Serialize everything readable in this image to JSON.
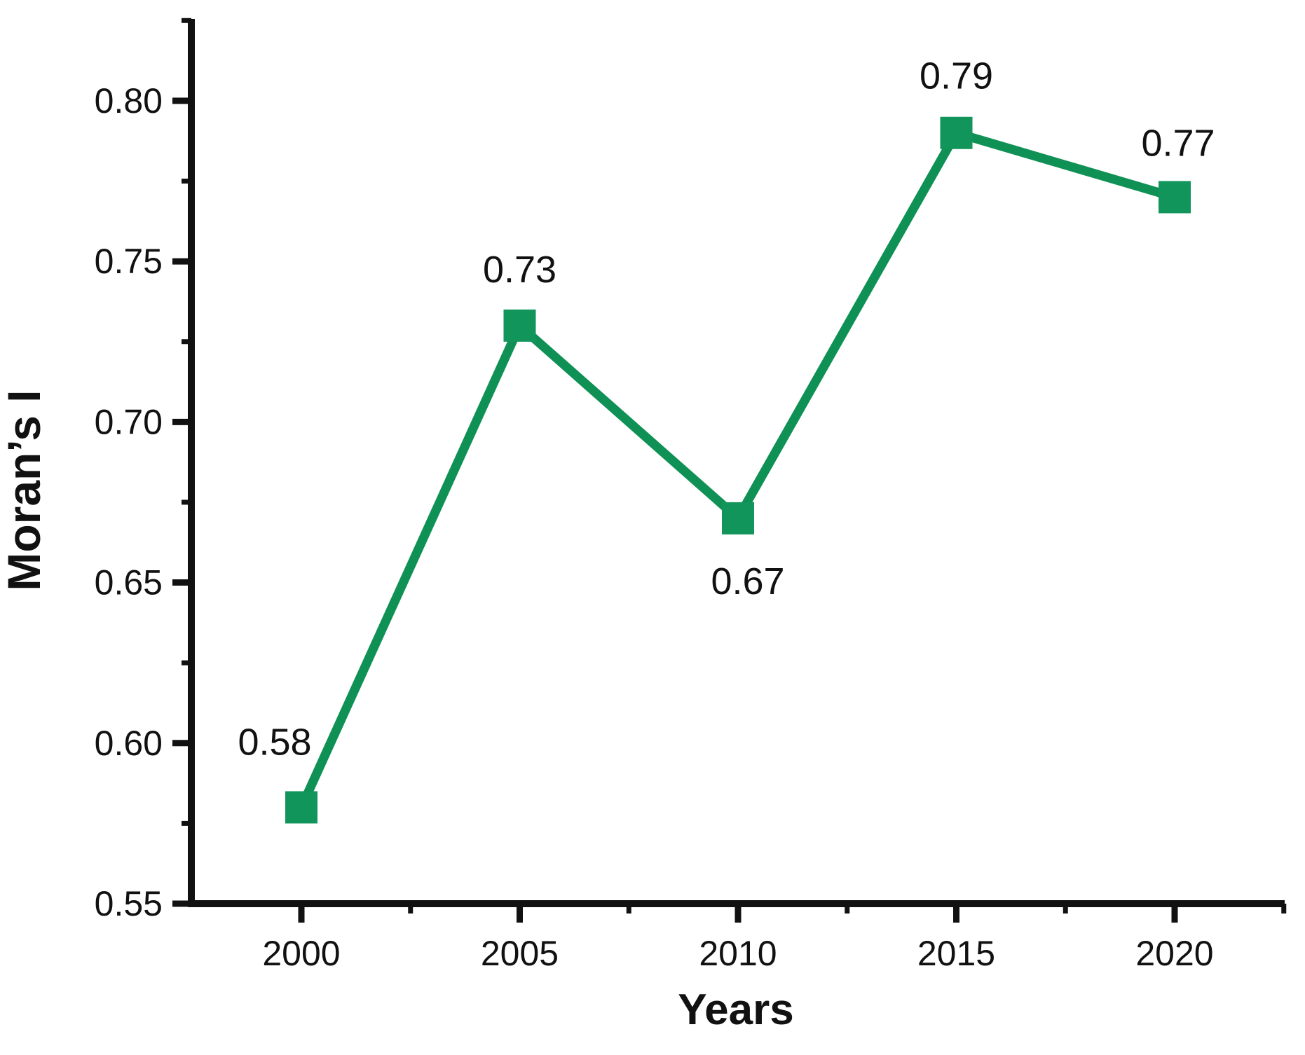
{
  "chart_data": {
    "type": "line",
    "title": "",
    "xlabel": "Years",
    "ylabel": "Moran’s I",
    "x": [
      2000,
      2005,
      2010,
      2015,
      2020
    ],
    "values": [
      0.58,
      0.73,
      0.67,
      0.79,
      0.77
    ],
    "point_labels": [
      "0.58",
      "0.73",
      "0.67",
      "0.79",
      "0.77"
    ],
    "label_placement": [
      "above",
      "above",
      "below",
      "above",
      "above"
    ],
    "label_dx": [
      -38,
      0,
      14,
      0,
      5
    ],
    "label_dy": [
      -75,
      -62,
      108,
      -63,
      -59
    ],
    "xlim": [
      1997.48,
      2022.52
    ],
    "ylim": [
      0.55,
      0.8255
    ],
    "x_major_ticks": [
      2000,
      2005,
      2010,
      2015,
      2020
    ],
    "x_tick_labels": [
      "2000",
      "2005",
      "2010",
      "2015",
      "2020"
    ],
    "x_minor_ticks": [
      2002.5,
      2007.5,
      2012.5,
      2017.5,
      2022.5
    ],
    "y_major_ticks": [
      0.55,
      0.6,
      0.65,
      0.7,
      0.75,
      0.8
    ],
    "y_tick_labels": [
      "0.55",
      "0.60",
      "0.65",
      "0.70",
      "0.75",
      "0.80"
    ],
    "y_minor_ticks": [
      0.575,
      0.625,
      0.675,
      0.725,
      0.775,
      0.825
    ],
    "grid": false,
    "legend_position": "none",
    "line_color": "#0f9155",
    "marker": "square",
    "marker_color": "#12955a",
    "axis_color": "#111111",
    "text_color": "#111111",
    "background_color": "#ffffff"
  }
}
